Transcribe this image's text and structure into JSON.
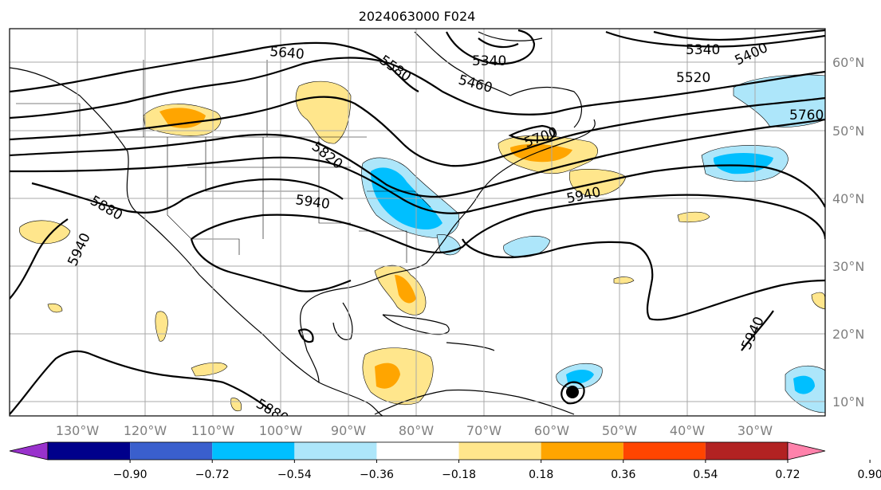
{
  "title": "2024063000 F024",
  "map": {
    "lon_labels": [
      "130°W",
      "120°W",
      "110°W",
      "100°W",
      "90°W",
      "80°W",
      "70°W",
      "60°W",
      "50°W",
      "40°W",
      "30°W"
    ],
    "lat_labels": [
      "60°N",
      "50°N",
      "40°N",
      "30°N",
      "20°N",
      "10°N"
    ],
    "grid": true
  },
  "contour_labels": [
    "5640",
    "5580",
    "5340",
    "5460",
    "5340",
    "5400",
    "5520",
    "5760",
    "5820",
    "5940",
    "5880",
    "5940",
    "5940",
    "5940",
    "5880",
    "5700"
  ],
  "colorbar": {
    "ticks": [
      "−0.90",
      "−0.72",
      "−0.54",
      "−0.36",
      "−0.18",
      "0.18",
      "0.36",
      "0.54",
      "0.72",
      "0.90"
    ],
    "colors": [
      "#9932cc",
      "#00008b",
      "#3a5fcd",
      "#00bfff",
      "#ade6fa",
      "#ffffff",
      "#ffe68c",
      "#ffa500",
      "#ff4500",
      "#b22222",
      "#ff82ab"
    ]
  },
  "colors": {
    "contour": "#000000",
    "grid": "#a9a9a9",
    "border": "#000000"
  }
}
